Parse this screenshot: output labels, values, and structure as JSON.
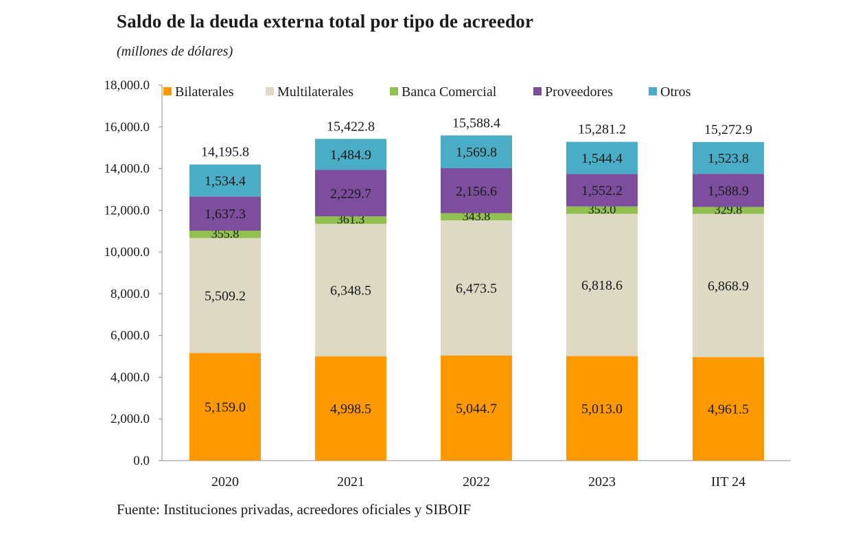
{
  "header": {
    "title": "Saldo de la deuda externa total por tipo de acreedor",
    "subtitle": "(millones de dólares)"
  },
  "footer": {
    "source": "Fuente: Instituciones privadas, acreedores oficiales y SIBOIF"
  },
  "chart_data": {
    "type": "bar",
    "stacked": true,
    "title": "Saldo de la deuda externa total por tipo de acreedor",
    "subtitle": "(millones de dólares)",
    "xlabel": "",
    "ylabel": "",
    "ylim": [
      0,
      18000
    ],
    "yticks": [
      "0.0",
      "2,000.0",
      "4,000.0",
      "6,000.0",
      "8,000.0",
      "10,000.0",
      "12,000.0",
      "14,000.0",
      "16,000.0",
      "18,000.0"
    ],
    "ytick_values": [
      0,
      2000,
      4000,
      6000,
      8000,
      10000,
      12000,
      14000,
      16000,
      18000
    ],
    "grid": false,
    "legend_position": "top",
    "categories": [
      "2020",
      "2021",
      "2022",
      "2023",
      "IIT 24"
    ],
    "series": [
      {
        "name": "Bilaterales",
        "color": "#FF9900",
        "values": [
          5159.0,
          4998.5,
          5044.7,
          5013.0,
          4961.5
        ],
        "labels": [
          "5,159.0",
          "4,998.5",
          "5,044.7",
          "5,013.0",
          "4,961.5"
        ]
      },
      {
        "name": "Multilaterales",
        "color": "#DDD9C4",
        "values": [
          5509.2,
          6348.5,
          6473.5,
          6818.6,
          6868.9
        ],
        "labels": [
          "5,509.2",
          "6,348.5",
          "6,473.5",
          "6,818.6",
          "6,868.9"
        ]
      },
      {
        "name": "Banca Comercial",
        "color": "#92C050",
        "values": [
          355.8,
          361.3,
          343.8,
          353.0,
          329.8
        ],
        "labels": [
          "355.8",
          "361.3",
          "343.8",
          "353.0",
          "329.8"
        ]
      },
      {
        "name": "Proveedores",
        "color": "#7E4E9E",
        "values": [
          1637.3,
          2229.7,
          2156.6,
          1552.2,
          1588.9
        ],
        "labels": [
          "1,637.3",
          "2,229.7",
          "2,156.6",
          "1,552.2",
          "1,588.9"
        ]
      },
      {
        "name": "Otros",
        "color": "#4BACC6",
        "values": [
          1534.4,
          1484.9,
          1569.8,
          1544.4,
          1523.8
        ],
        "labels": [
          "1,534.4",
          "1,484.9",
          "1,569.8",
          "1,544.4",
          "1,523.8"
        ]
      }
    ],
    "totals": [
      14195.8,
      15422.8,
      15588.4,
      15281.2,
      15272.9
    ],
    "total_labels": [
      "14,195.8",
      "15,422.8",
      "15,588.4",
      "15,281.2",
      "15,272.9"
    ]
  }
}
